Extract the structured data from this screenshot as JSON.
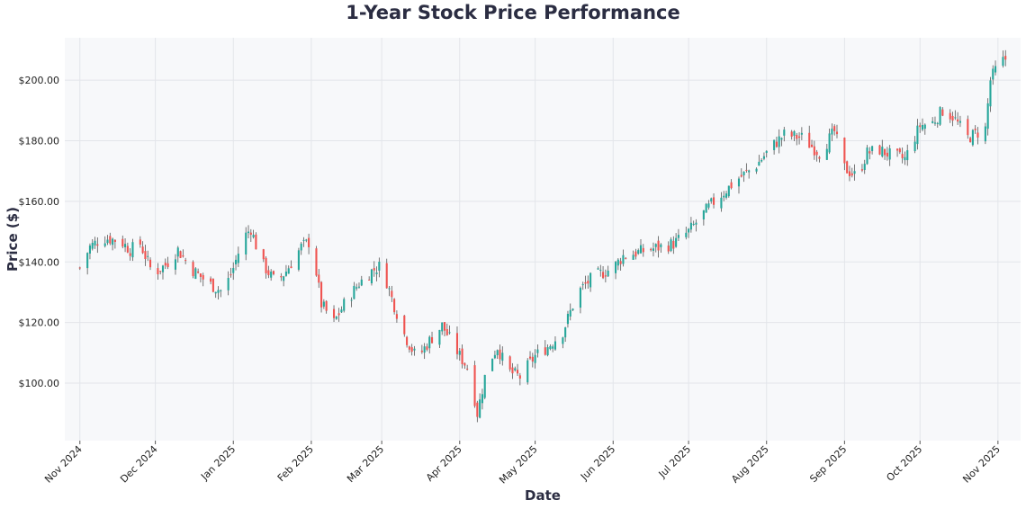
{
  "chart_data": {
    "type": "candlestick",
    "title": "1-Year Stock Price Performance",
    "xlabel": "Date",
    "ylabel": "Price ($)",
    "ylim": [
      81,
      214
    ],
    "yticks": [
      100,
      120,
      140,
      160,
      180,
      200
    ],
    "ytick_labels": [
      "$100.00",
      "$120.00",
      "$140.00",
      "$160.00",
      "$180.00",
      "$200.00"
    ],
    "xlim": [
      "2024-10-26",
      "2025-11-10"
    ],
    "xticks": [
      "2024-11-01",
      "2024-12-01",
      "2025-01-01",
      "2025-02-01",
      "2025-03-01",
      "2025-04-01",
      "2025-05-01",
      "2025-06-01",
      "2025-07-01",
      "2025-08-01",
      "2025-09-01",
      "2025-10-01",
      "2025-11-01"
    ],
    "xtick_labels": [
      "Nov 2024",
      "Dec 2024",
      "Jan 2025",
      "Feb 2025",
      "Mar 2025",
      "Apr 2025",
      "May 2025",
      "Jun 2025",
      "Jul 2025",
      "Aug 2025",
      "Sep 2025",
      "Oct 2025",
      "Nov 2025"
    ],
    "grid": true,
    "colors": {
      "up": "#26a69a",
      "down": "#ef5350",
      "background": "#f7f8fa",
      "grid": "#e3e5ea",
      "text": "#2b2d42"
    },
    "anchors": [
      [
        "2024-11-01",
        138
      ],
      [
        "2024-11-05",
        145
      ],
      [
        "2024-11-10",
        148
      ],
      [
        "2024-11-17",
        147
      ],
      [
        "2024-11-21",
        144
      ],
      [
        "2024-11-25",
        146
      ],
      [
        "2024-11-30",
        136
      ],
      [
        "2024-12-05",
        139
      ],
      [
        "2024-12-10",
        144
      ],
      [
        "2024-12-15",
        138
      ],
      [
        "2024-12-22",
        133
      ],
      [
        "2024-12-28",
        130
      ],
      [
        "2025-01-01",
        138
      ],
      [
        "2025-01-05",
        148
      ],
      [
        "2025-01-08",
        151
      ],
      [
        "2025-01-12",
        140
      ],
      [
        "2025-01-18",
        133
      ],
      [
        "2025-01-22",
        137
      ],
      [
        "2025-01-28",
        145
      ],
      [
        "2025-02-01",
        147
      ],
      [
        "2025-02-05",
        126
      ],
      [
        "2025-02-10",
        120
      ],
      [
        "2025-02-14",
        126
      ],
      [
        "2025-02-20",
        133
      ],
      [
        "2025-02-25",
        137
      ],
      [
        "2025-03-01",
        139
      ],
      [
        "2025-03-05",
        128
      ],
      [
        "2025-03-10",
        116
      ],
      [
        "2025-03-15",
        108
      ],
      [
        "2025-03-20",
        114
      ],
      [
        "2025-03-25",
        119
      ],
      [
        "2025-04-01",
        109
      ],
      [
        "2025-04-05",
        104
      ],
      [
        "2025-04-08",
        90
      ],
      [
        "2025-04-12",
        106
      ],
      [
        "2025-04-16",
        112
      ],
      [
        "2025-04-20",
        104
      ],
      [
        "2025-04-25",
        102
      ],
      [
        "2025-05-01",
        109
      ],
      [
        "2025-05-06",
        112
      ],
      [
        "2025-05-12",
        117
      ],
      [
        "2025-05-18",
        130
      ],
      [
        "2025-05-24",
        135
      ],
      [
        "2025-06-01",
        138
      ],
      [
        "2025-06-05",
        142
      ],
      [
        "2025-06-15",
        144
      ],
      [
        "2025-06-25",
        146
      ],
      [
        "2025-07-01",
        150
      ],
      [
        "2025-07-10",
        159
      ],
      [
        "2025-07-20",
        167
      ],
      [
        "2025-07-28",
        172
      ],
      [
        "2025-08-03",
        178
      ],
      [
        "2025-08-08",
        182
      ],
      [
        "2025-08-15",
        181
      ],
      [
        "2025-08-22",
        176
      ],
      [
        "2025-08-28",
        183
      ],
      [
        "2025-09-01",
        171
      ],
      [
        "2025-09-06",
        168
      ],
      [
        "2025-09-10",
        176
      ],
      [
        "2025-09-15",
        177
      ],
      [
        "2025-09-20",
        175
      ],
      [
        "2025-09-25",
        174
      ],
      [
        "2025-10-01",
        185
      ],
      [
        "2025-10-06",
        186
      ],
      [
        "2025-10-10",
        190
      ],
      [
        "2025-10-14",
        188
      ],
      [
        "2025-10-20",
        181
      ],
      [
        "2025-10-27",
        184
      ],
      [
        "2025-10-29",
        200
      ],
      [
        "2025-11-01",
        205
      ],
      [
        "2025-11-04",
        207
      ]
    ]
  }
}
